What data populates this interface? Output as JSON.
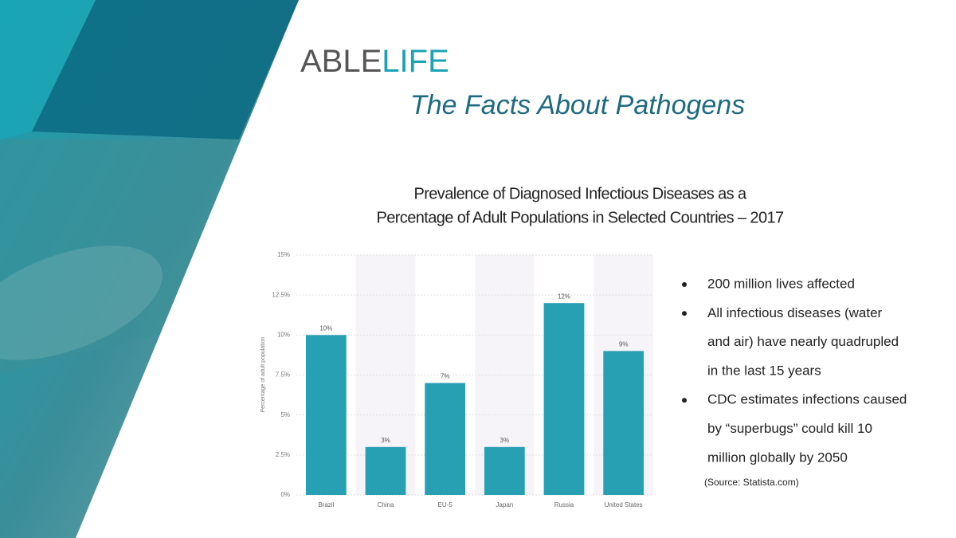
{
  "logo": {
    "part1": "ABLE",
    "part2": "LIFE"
  },
  "heading": "The Facts About Pathogens",
  "chart_data": {
    "type": "bar",
    "title": [
      "Prevalence of Diagnosed Infectious Diseases as a",
      "Percentage of Adult Populations in Selected Countries – 2017"
    ],
    "y_label": "Percentage of adult population",
    "categories": [
      "Brazil",
      "China",
      "EU-5",
      "Japan",
      "Russia",
      "United States"
    ],
    "values": [
      10,
      3,
      7,
      3,
      12,
      9
    ],
    "value_labels": [
      "10%",
      "3%",
      "7%",
      "3%",
      "12%",
      "9%"
    ],
    "color": "#27a0b4",
    "ylim": [
      0,
      15
    ],
    "yticks": [
      {
        "value": 0,
        "label": "0%"
      },
      {
        "value": 2.5,
        "label": "2.5%"
      },
      {
        "value": 5,
        "label": "5%"
      },
      {
        "value": 7.5,
        "label": "7.5%"
      },
      {
        "value": 10,
        "label": "10%"
      },
      {
        "value": 12.5,
        "label": "12.5%"
      },
      {
        "value": 15,
        "label": "15%"
      }
    ],
    "grid": true
  },
  "bullets": [
    [
      "200 million lives affected"
    ],
    [
      "All infectious diseases (water",
      "and air) have nearly quadrupled",
      "in the last 15 years"
    ],
    [
      "CDC estimates infections caused",
      "by “superbugs” could kill 10",
      "million globally by 2050"
    ]
  ],
  "source": "(Source: Statista.com)"
}
